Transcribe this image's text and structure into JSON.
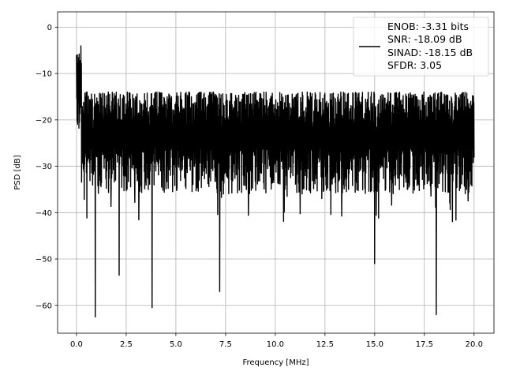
{
  "chart_data": {
    "type": "line",
    "title": "",
    "xlabel": "Frequency [MHz]",
    "ylabel": "PSD [dB]",
    "xlim": [
      -0.95,
      21.0
    ],
    "ylim": [
      -66.0,
      3.3
    ],
    "x_ticks": [
      0.0,
      2.5,
      5.0,
      7.5,
      10.0,
      12.5,
      15.0,
      17.5,
      20.0
    ],
    "x_tick_labels": [
      "0.0",
      "2.5",
      "5.0",
      "7.5",
      "10.0",
      "12.5",
      "15.0",
      "17.5",
      "20.0"
    ],
    "y_ticks": [
      0,
      -10,
      -20,
      -30,
      -40,
      -50,
      -60
    ],
    "y_tick_labels": [
      "0",
      "−10",
      "−20",
      "−30",
      "−40",
      "−50",
      "−60"
    ],
    "grid": true,
    "legend_position": "top-right",
    "series": [
      {
        "name": "ENOB: -3.31 bits\nSNR: -18.09 dB\nSINAD: -18.15 dB\nSFDR: 3.05",
        "legend_lines": [
          "ENOB: -3.31 bits",
          "SNR: -18.09 dB",
          "SINAD: -18.15 dB",
          "SFDR: 3.05"
        ],
        "color": "#000000",
        "x_range": [
          0.0,
          20.0
        ],
        "typical_band_db": [
          -30.0,
          -14.0
        ],
        "peaks": [
          {
            "x": 0.0,
            "y": 0.0
          },
          {
            "x": 0.05,
            "y": -6.0
          },
          {
            "x": 0.1,
            "y": -10.0
          }
        ],
        "dips": [
          {
            "x": 0.95,
            "y": -62.5
          },
          {
            "x": 2.15,
            "y": -53.5
          },
          {
            "x": 3.8,
            "y": -60.5
          },
          {
            "x": 7.2,
            "y": -57.0
          },
          {
            "x": 15.0,
            "y": -51.0
          },
          {
            "x": 18.1,
            "y": -62.0
          }
        ]
      }
    ]
  }
}
